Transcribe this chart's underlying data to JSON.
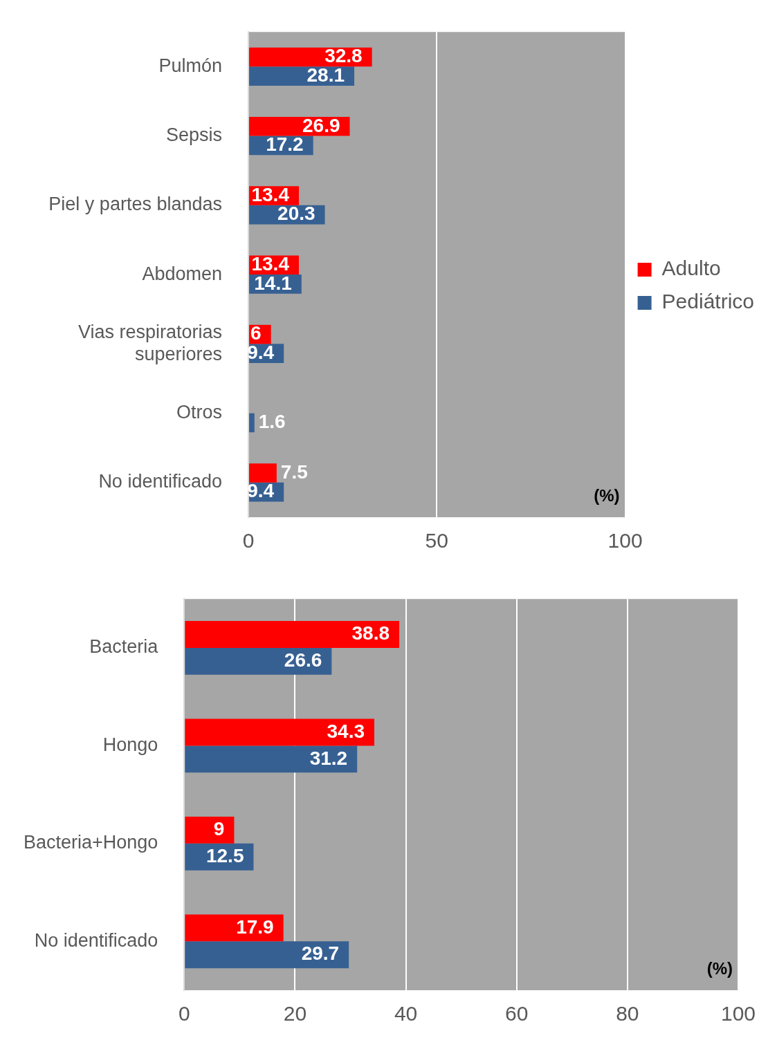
{
  "chart_data": [
    {
      "type": "bar",
      "orientation": "horizontal",
      "categories": [
        "Pulmón",
        "Sepsis",
        "Piel y partes blandas",
        "Abdomen",
        "Vias respiratorias superiores",
        "Otros",
        "No identificado"
      ],
      "series": [
        {
          "name": "Adulto",
          "color": "#ff0000",
          "values": [
            32.8,
            26.9,
            13.4,
            13.4,
            6,
            null,
            7.5
          ]
        },
        {
          "name": "Pediátrico",
          "color": "#376092",
          "values": [
            28.1,
            17.2,
            20.3,
            14.1,
            9.4,
            1.6,
            9.4
          ]
        }
      ],
      "xlim": [
        0,
        100
      ],
      "xticks": [
        0,
        50,
        100
      ],
      "grid": "x",
      "legend": "right",
      "data_labels": true,
      "annotations": [
        "(%)"
      ]
    },
    {
      "type": "bar",
      "orientation": "horizontal",
      "categories": [
        "Bacteria",
        "Hongo",
        "Bacteria+Hongo",
        "No identificado"
      ],
      "series": [
        {
          "color": "#ff0000",
          "values": [
            38.8,
            34.3,
            9,
            17.9
          ]
        },
        {
          "color": "#376092",
          "values": [
            26.6,
            31.2,
            12.5,
            29.7
          ]
        }
      ],
      "xlim": [
        0,
        100
      ],
      "xticks": [
        0,
        20,
        40,
        60,
        80,
        100
      ],
      "grid": "x",
      "data_labels": true,
      "annotations": [
        "(%)"
      ]
    }
  ]
}
